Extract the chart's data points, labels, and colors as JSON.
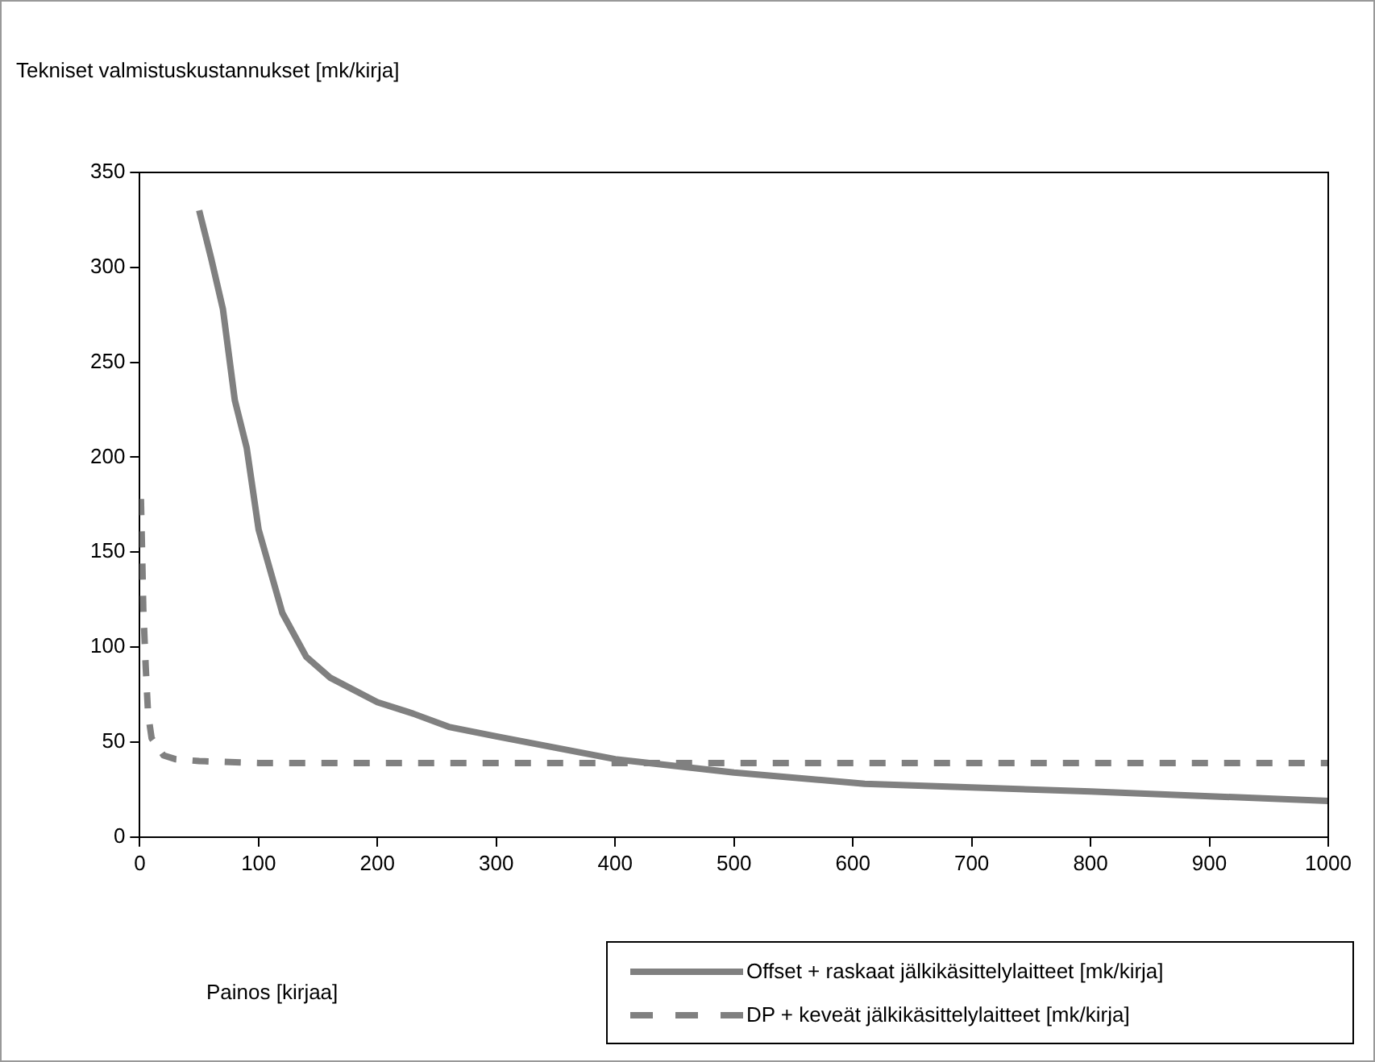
{
  "chart_data": {
    "type": "line",
    "ylabel": "Tekniset valmistuskustannukset [mk/kirja]",
    "annotations": [
      "Painos [kirjaa]"
    ],
    "xlim": [
      0,
      1000
    ],
    "xticks": [
      0,
      100,
      200,
      300,
      400,
      500,
      600,
      700,
      800,
      900,
      1000
    ],
    "ylim": [
      0,
      350
    ],
    "yticks": [
      0,
      50,
      100,
      150,
      200,
      250,
      300,
      350
    ],
    "grid": false,
    "legend": "bottom right",
    "marker": "none",
    "series": [
      {
        "name": "Offset + raskaat jälkikäsittelylaitteet [mk/kirja]",
        "color": "#808080",
        "line_style": "solid",
        "x": [
          50,
          60,
          70,
          80,
          90,
          100,
          120,
          140,
          160,
          200,
          230,
          260,
          300,
          400,
          500,
          610,
          800,
          1000
        ],
        "values": [
          330,
          305,
          278,
          230,
          205,
          162,
          118,
          95,
          84,
          71,
          65,
          58,
          53,
          41,
          34,
          28,
          24,
          19
        ]
      },
      {
        "name": "DP + keveät jälkikäsittelylaitteet [mk/kirja]",
        "color": "#808080",
        "line_style": "dashed",
        "x": [
          1,
          2,
          3,
          5,
          7,
          10,
          20,
          30,
          50,
          100,
          1000
        ],
        "values": [
          178,
          150,
          120,
          90,
          65,
          52,
          43,
          41,
          40,
          39,
          39
        ]
      }
    ]
  }
}
